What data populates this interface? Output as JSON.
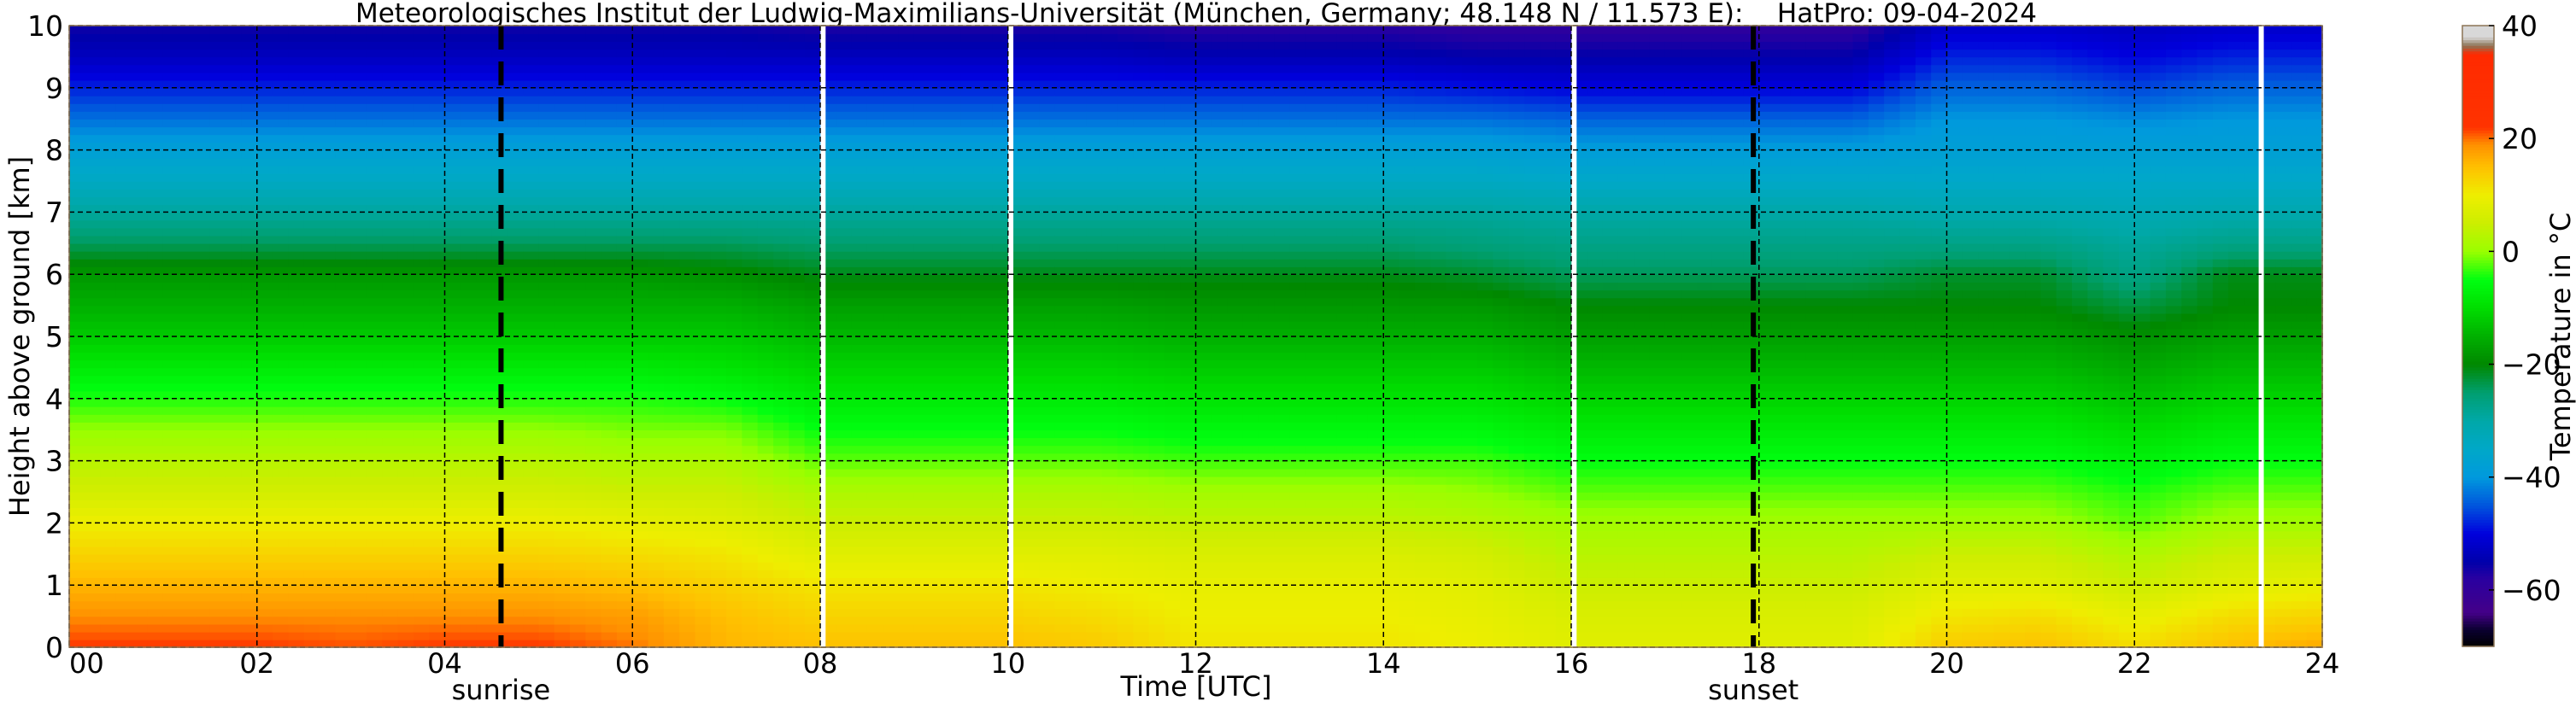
{
  "chart_data": {
    "type": "heatmap",
    "title": "Meteorologisches Institut der Ludwig-Maximilians-Universität (München, Germany; 48.148 N / 11.573 E):    HatPro: 09-04-2024",
    "xlabel": "Time [UTC]",
    "ylabel": "Height above ground [km]",
    "colorbar_label": "Temperature in $^\\circ$C",
    "colorbar_label_display": "Temperature in °C",
    "xlim": [
      0,
      24
    ],
    "ylim": [
      0,
      10
    ],
    "clim": [
      -70,
      40
    ],
    "grid": true,
    "x_ticks": [
      "00",
      "02",
      "04",
      "06",
      "08",
      "10",
      "12",
      "14",
      "16",
      "18",
      "20",
      "22",
      "24"
    ],
    "y_ticks": [
      "0",
      "1",
      "2",
      "3",
      "4",
      "5",
      "6",
      "7",
      "8",
      "9",
      "10"
    ],
    "colorbar_ticks": [
      "40",
      "20",
      "0",
      "−20",
      "−40",
      "−60"
    ],
    "colorbar_tick_values": [
      40,
      20,
      0,
      -20,
      -40,
      -60
    ],
    "annotations": [
      {
        "text": "sunrise",
        "time_utc": 4.6
      },
      {
        "text": "sunset",
        "time_utc": 17.94
      }
    ],
    "data_gaps_hours": [
      8.03,
      10.03,
      16.03,
      23.35
    ],
    "times_utc": [
      0,
      1,
      2,
      3,
      4,
      5,
      6,
      7,
      8,
      9,
      10,
      11,
      12,
      13,
      14,
      15,
      16,
      17,
      18,
      19,
      20,
      21,
      22,
      23,
      24
    ],
    "heights_km": [
      0,
      0.5,
      1,
      1.5,
      2,
      2.5,
      3,
      3.5,
      4,
      4.5,
      5,
      5.5,
      6,
      6.5,
      7,
      7.5,
      8,
      8.5,
      9,
      9.5,
      10
    ],
    "temperature_c": [
      [
        22,
        19,
        16,
        13,
        10,
        6,
        3,
        0,
        -4,
        -8,
        -12,
        -15,
        -18,
        -24,
        -29,
        -34,
        -38,
        -43,
        -48,
        -53,
        -56
      ],
      [
        22,
        19,
        16,
        13,
        10,
        6,
        3,
        0,
        -4,
        -8,
        -12,
        -15,
        -18,
        -24,
        -29,
        -34,
        -38,
        -43,
        -48,
        -53,
        -56
      ],
      [
        22,
        19,
        16,
        13,
        10,
        6,
        3,
        0,
        -4,
        -8,
        -12,
        -15,
        -18,
        -24,
        -29,
        -34,
        -38,
        -43,
        -48,
        -53,
        -56
      ],
      [
        21,
        19,
        16,
        13,
        10,
        6,
        3,
        0,
        -4,
        -8,
        -12,
        -15,
        -18,
        -24,
        -29,
        -34,
        -38,
        -43,
        -48,
        -53,
        -56
      ],
      [
        22,
        19,
        16,
        13,
        10,
        6,
        3,
        0,
        -4,
        -8,
        -12,
        -15,
        -18,
        -24,
        -29,
        -34,
        -38,
        -43,
        -48,
        -53,
        -56
      ],
      [
        22,
        19,
        16,
        13,
        10,
        6,
        3,
        0,
        -4,
        -8,
        -12,
        -15,
        -18,
        -24,
        -29,
        -34,
        -38,
        -43,
        -48,
        -53,
        -56
      ],
      [
        20,
        18,
        15,
        12,
        9,
        5,
        2,
        -1,
        -4,
        -8,
        -12,
        -15,
        -18,
        -24,
        -29,
        -34,
        -38,
        -43,
        -48,
        -53,
        -56
      ],
      [
        16,
        15,
        13,
        11,
        8,
        5,
        2,
        -1,
        -5,
        -9,
        -12,
        -15,
        -19,
        -24,
        -29,
        -34,
        -38,
        -43,
        -48,
        -53,
        -56
      ],
      [
        15,
        13,
        11,
        8,
        5,
        2,
        -2,
        -5,
        -8,
        -11,
        -14,
        -17,
        -21,
        -25,
        -29,
        -34,
        -38,
        -43,
        -48,
        -53,
        -57
      ],
      [
        15,
        13,
        11,
        8,
        5,
        2,
        -2,
        -5,
        -8,
        -11,
        -14,
        -17,
        -21,
        -25,
        -29,
        -34,
        -38,
        -43,
        -48,
        -53,
        -57
      ],
      [
        15,
        13,
        11,
        8,
        5,
        2,
        -2,
        -5,
        -8,
        -11,
        -14,
        -17,
        -21,
        -25,
        -29,
        -34,
        -38,
        -43,
        -48,
        -53,
        -57
      ],
      [
        14,
        12,
        10,
        8,
        5,
        2,
        -2,
        -5,
        -8,
        -11,
        -14,
        -17,
        -21,
        -25,
        -29,
        -34,
        -38,
        -43,
        -48,
        -53,
        -57
      ],
      [
        11,
        10,
        9,
        7,
        4,
        1,
        -3,
        -6,
        -9,
        -12,
        -15,
        -18,
        -21,
        -25,
        -29,
        -34,
        -38,
        -43,
        -48,
        -54,
        -58
      ],
      [
        11,
        10,
        9,
        7,
        4,
        1,
        -3,
        -6,
        -9,
        -12,
        -15,
        -18,
        -21,
        -25,
        -29,
        -34,
        -38,
        -43,
        -48,
        -54,
        -58
      ],
      [
        11,
        10,
        9,
        7,
        4,
        1,
        -3,
        -6,
        -9,
        -12,
        -15,
        -18,
        -21,
        -25,
        -29,
        -34,
        -38,
        -43,
        -48,
        -54,
        -58
      ],
      [
        10,
        9,
        8,
        6,
        3,
        0,
        -3,
        -6,
        -9,
        -12,
        -15,
        -18,
        -22,
        -26,
        -29,
        -34,
        -38,
        -43,
        -49,
        -55,
        -59
      ],
      [
        8,
        7,
        5,
        3,
        1,
        -2,
        -5,
        -8,
        -11,
        -14,
        -17,
        -20,
        -24,
        -27,
        -30,
        -35,
        -39,
        -44,
        -50,
        -55,
        -59
      ],
      [
        8,
        7,
        5,
        3,
        1,
        -2,
        -5,
        -8,
        -11,
        -14,
        -17,
        -20,
        -24,
        -27,
        -30,
        -35,
        -39,
        -44,
        -50,
        -55,
        -59
      ],
      [
        8,
        7,
        5,
        3,
        1,
        -2,
        -5,
        -8,
        -11,
        -14,
        -17,
        -20,
        -24,
        -27,
        -30,
        -35,
        -39,
        -44,
        -50,
        -55,
        -59
      ],
      [
        8,
        7,
        5,
        3,
        1,
        -2,
        -5,
        -8,
        -11,
        -14,
        -17,
        -20,
        -24,
        -27,
        -30,
        -35,
        -39,
        -44,
        -50,
        -55,
        -59
      ],
      [
        14,
        11,
        8,
        5,
        1,
        -2,
        -5,
        -8,
        -11,
        -14,
        -17,
        -20,
        -22,
        -27,
        -31,
        -35,
        -38,
        -40,
        -44,
        -48,
        -52
      ],
      [
        15,
        12,
        8,
        5,
        1,
        -2,
        -5,
        -8,
        -11,
        -14,
        -17,
        -20,
        -22,
        -27,
        -31,
        -35,
        -38,
        -40,
        -44,
        -48,
        -52
      ],
      [
        12,
        9,
        5,
        2,
        -2,
        -4,
        -7,
        -10,
        -13,
        -16,
        -19,
        -23,
        -27,
        -29,
        -32,
        -35,
        -38,
        -41,
        -46,
        -50,
        -53
      ],
      [
        15,
        12,
        8,
        5,
        1,
        -2,
        -5,
        -8,
        -11,
        -14,
        -17,
        -20,
        -21,
        -27,
        -31,
        -35,
        -38,
        -40,
        -44,
        -48,
        -52
      ],
      [
        17,
        13,
        9,
        5,
        1,
        -2,
        -5,
        -8,
        -11,
        -14,
        -17,
        -20,
        -21,
        -27,
        -31,
        -35,
        -38,
        -40,
        -44,
        -48,
        -52
      ]
    ],
    "colormap": [
      [
        -70,
        "#000000"
      ],
      [
        -67,
        "#0a0030"
      ],
      [
        -64,
        "#440088"
      ],
      [
        -58,
        "#2a00a0"
      ],
      [
        -55,
        "#0000aa"
      ],
      [
        -50,
        "#0000dd"
      ],
      [
        -45,
        "#0055dd"
      ],
      [
        -40,
        "#0099dd"
      ],
      [
        -35,
        "#00a8c8"
      ],
      [
        -30,
        "#00a8a8"
      ],
      [
        -25,
        "#009f70"
      ],
      [
        -20,
        "#008800"
      ],
      [
        -15,
        "#00b000"
      ],
      [
        -10,
        "#00dd00"
      ],
      [
        -5,
        "#00ff10"
      ],
      [
        0,
        "#99ff00"
      ],
      [
        5,
        "#ccee00"
      ],
      [
        10,
        "#eeee00"
      ],
      [
        15,
        "#ffc000"
      ],
      [
        19,
        "#ff9000"
      ],
      [
        22,
        "#ff3300"
      ],
      [
        35,
        "#ff2a00"
      ],
      [
        36.5,
        "#8b7355"
      ],
      [
        38,
        "#d8d8d8"
      ],
      [
        40,
        "#d8d8d8"
      ]
    ]
  }
}
